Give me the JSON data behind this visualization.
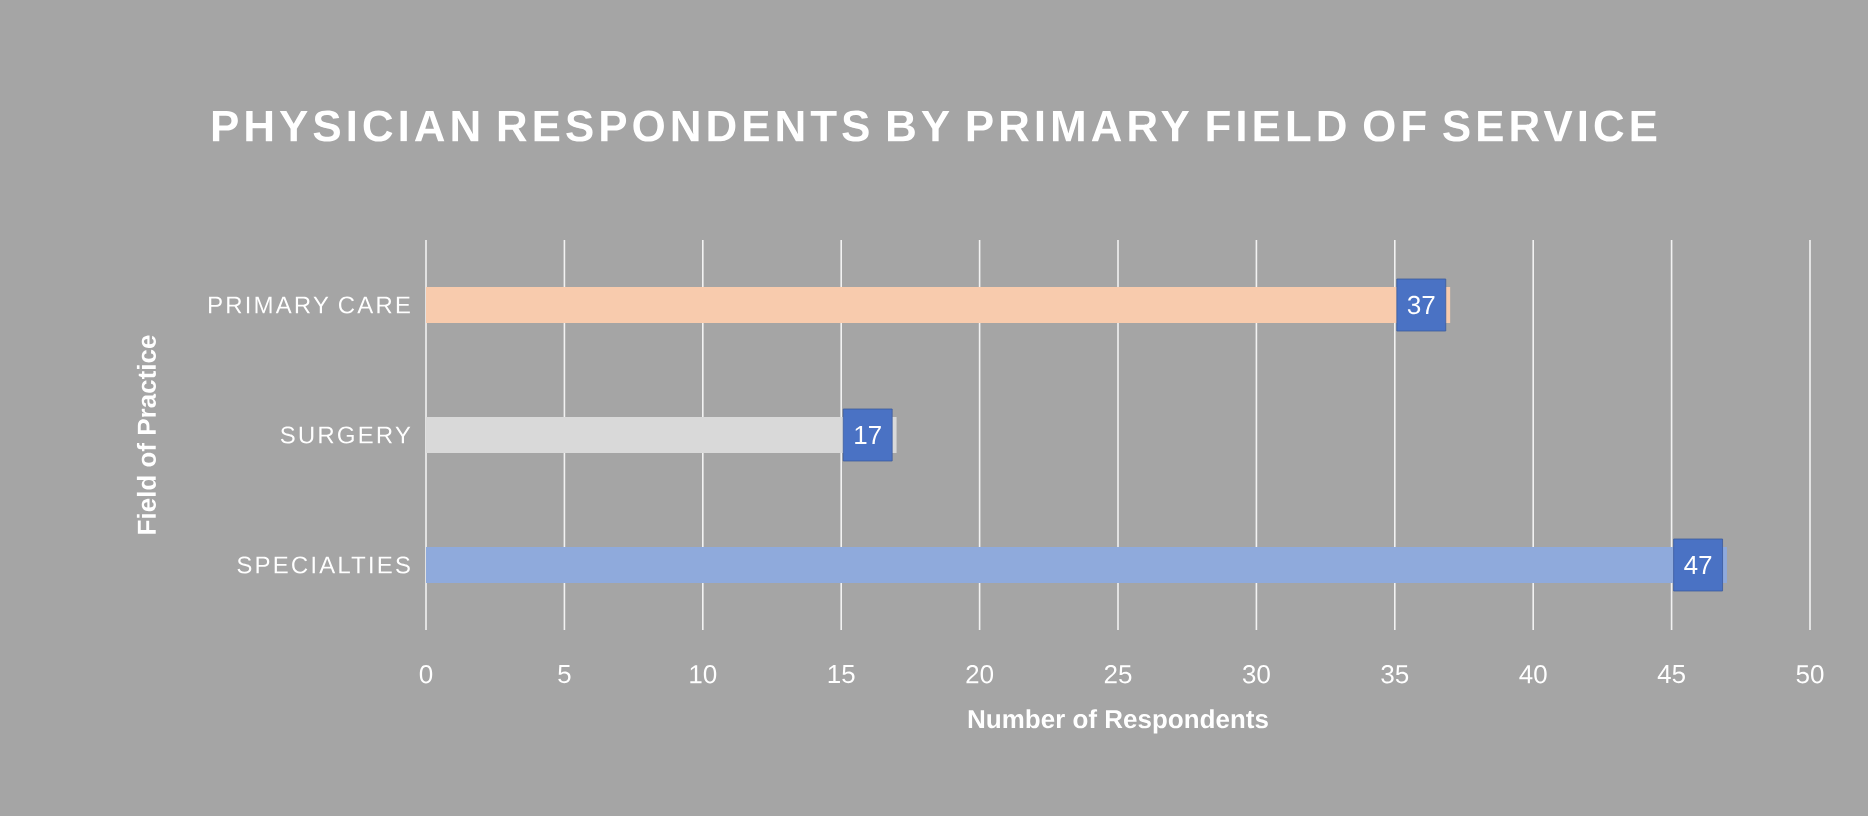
{
  "chart_data": {
    "type": "bar",
    "orientation": "horizontal",
    "title": "PHYSICIAN RESPONDENTS BY PRIMARY FIELD OF SERVICE",
    "xlabel": "Number of Respondents",
    "ylabel": "Field of Practice",
    "categories": [
      "PRIMARY CARE",
      "SURGERY",
      "SPECIALTIES"
    ],
    "values": [
      37,
      17,
      47
    ],
    "colors": [
      "#f8cbad",
      "#d9d9d9",
      "#8faadc"
    ],
    "data_labels": true,
    "xlim": [
      0,
      50
    ],
    "xticks": [
      0,
      5,
      10,
      15,
      20,
      25,
      30,
      35,
      40,
      45,
      50
    ],
    "grid": "x"
  }
}
